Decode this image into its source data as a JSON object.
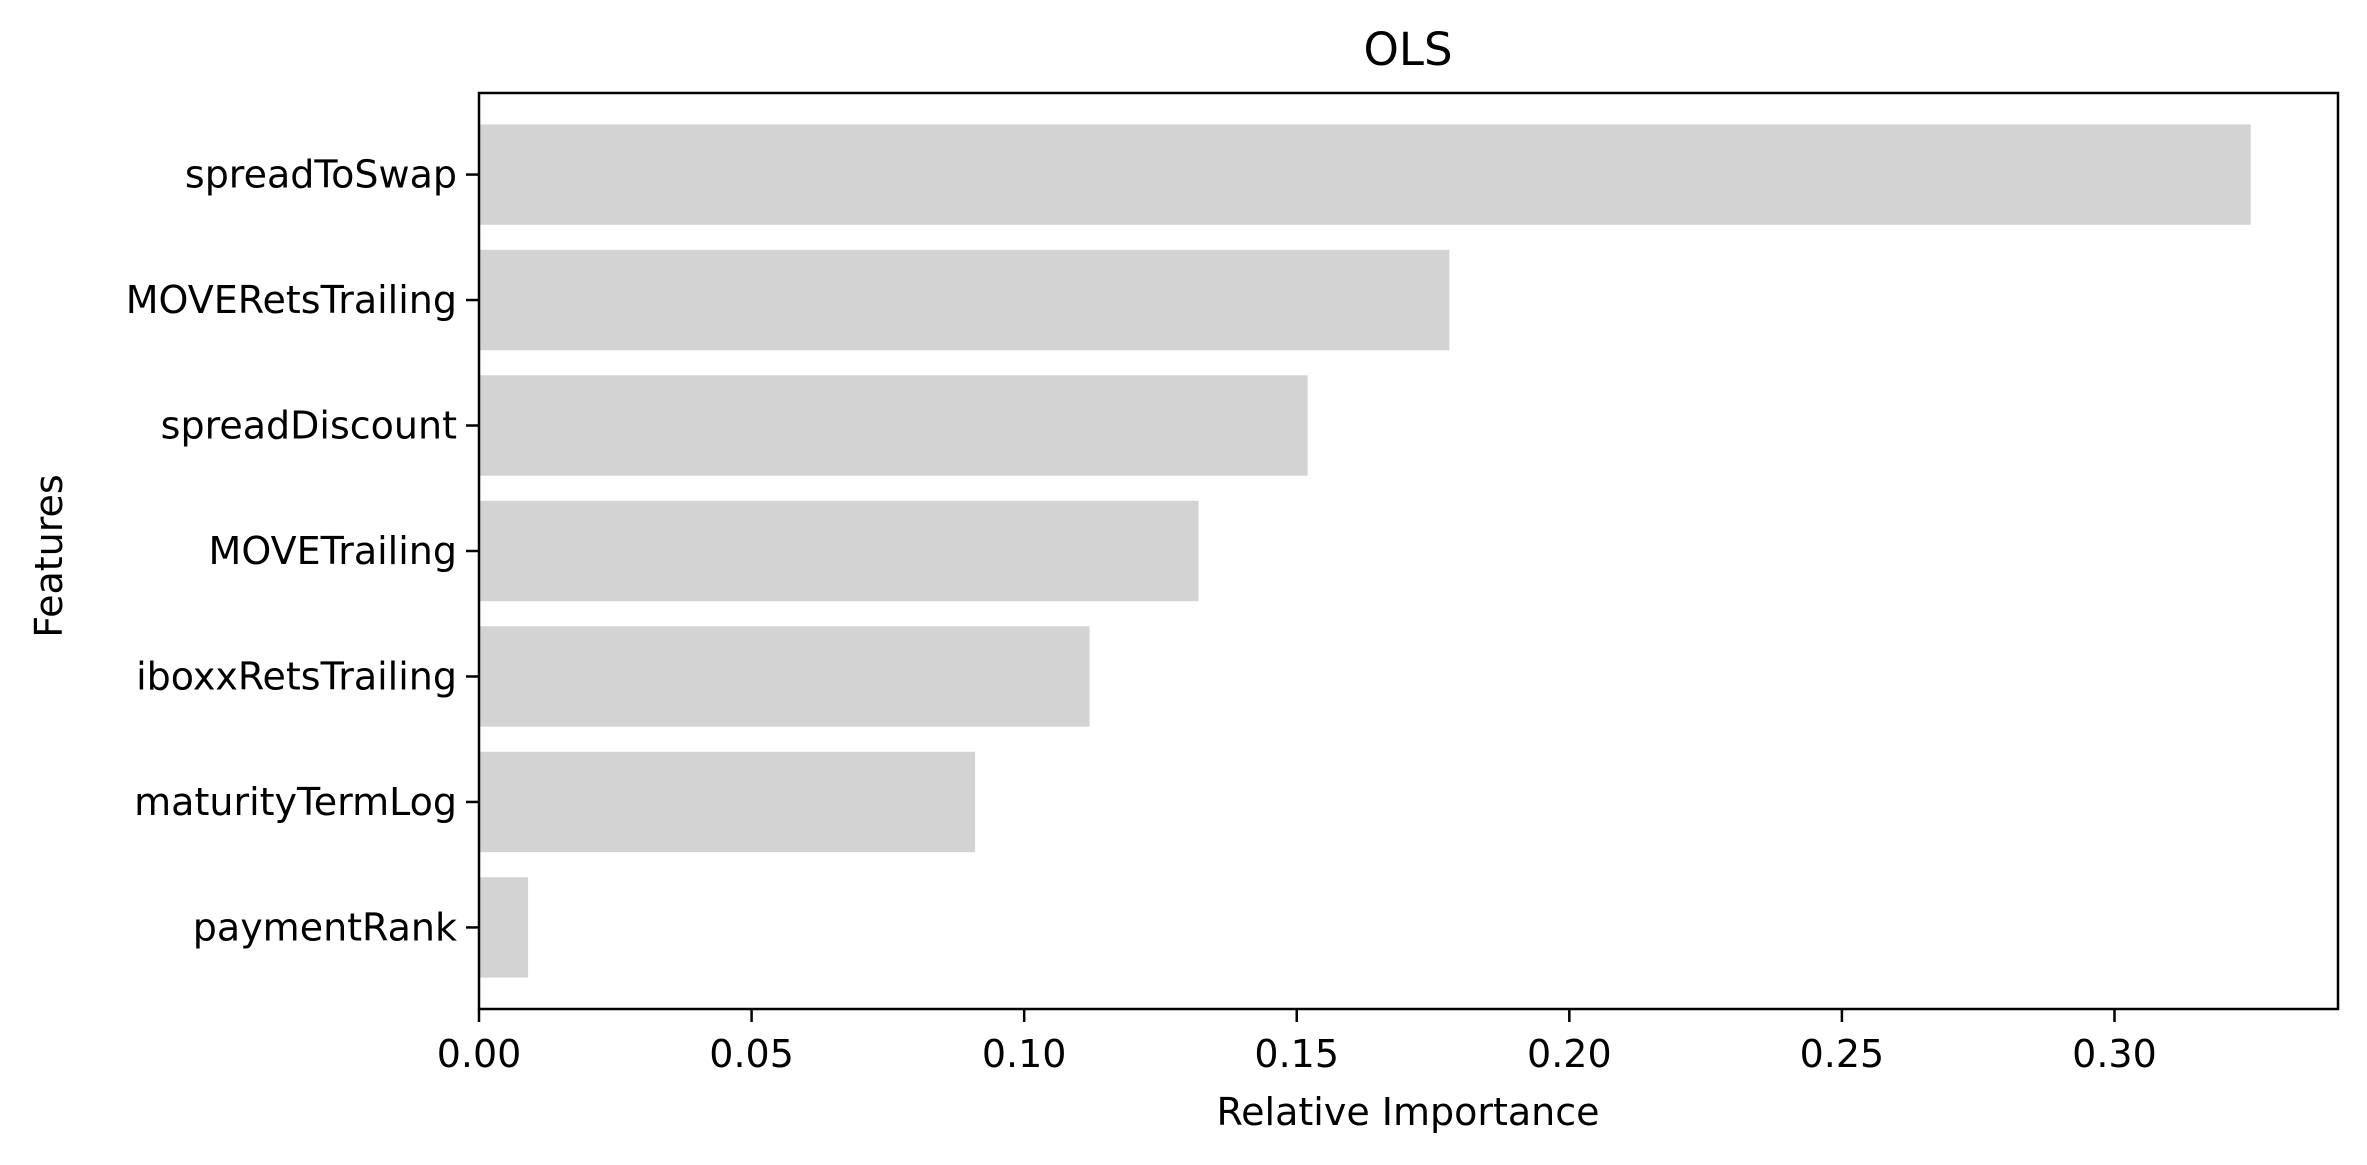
{
  "chart_data": {
    "type": "bar",
    "orientation": "horizontal",
    "title": "OLS",
    "xlabel": "Relative Importance",
    "ylabel": "Features",
    "categories": [
      "spreadToSwap",
      "MOVERetsTrailing",
      "spreadDiscount",
      "MOVETrailing",
      "iboxxRetsTrailing",
      "maturityTermLog",
      "paymentRank"
    ],
    "values": [
      0.325,
      0.178,
      0.152,
      0.132,
      0.112,
      0.091,
      0.009
    ],
    "xlim": [
      0.0,
      0.341
    ],
    "xticks": [
      0.0,
      0.05,
      0.1,
      0.15,
      0.2,
      0.25,
      0.3
    ],
    "xtick_labels": [
      "0.00",
      "0.05",
      "0.10",
      "0.15",
      "0.20",
      "0.25",
      "0.30"
    ],
    "bar_color": "#d3d3d3",
    "grid": false,
    "legend": false
  }
}
